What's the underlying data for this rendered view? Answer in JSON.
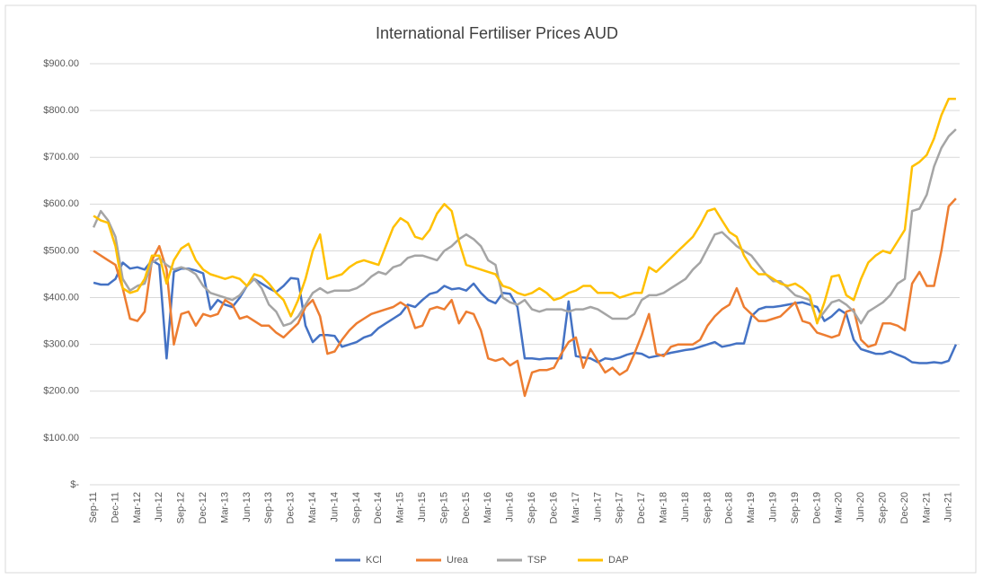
{
  "chart_data": {
    "type": "line",
    "title": "International Fertiliser Prices AUD",
    "categories": [
      "Sep-11",
      null,
      null,
      "Dec-11",
      null,
      null,
      "Mar-12",
      null,
      null,
      "Jun-12",
      null,
      null,
      "Sep-12",
      null,
      null,
      "Dec-12",
      null,
      null,
      "Mar-13",
      null,
      null,
      "Jun-13",
      null,
      null,
      "Sep-13",
      null,
      null,
      "Dec-13",
      null,
      null,
      "Mar-14",
      null,
      null,
      "Jun-14",
      null,
      null,
      "Sep-14",
      null,
      null,
      "Dec-14",
      null,
      null,
      "Mar-15",
      null,
      null,
      "Jun-15",
      null,
      null,
      "Sep-15",
      null,
      null,
      "Dec-15",
      null,
      null,
      "Mar-16",
      null,
      null,
      "Jun-16",
      null,
      null,
      "Sep-16",
      null,
      null,
      "Dec-16",
      null,
      null,
      "Mar-17",
      null,
      null,
      "Jun-17",
      null,
      null,
      "Sep-17",
      null,
      null,
      "Dec-17",
      null,
      null,
      "Mar-18",
      null,
      null,
      "Jun-18",
      null,
      null,
      "Sep-18",
      null,
      null,
      "Dec-18",
      null,
      null,
      "Mar-19",
      null,
      null,
      "Jun-19",
      null,
      null,
      "Sep-19",
      null,
      null,
      "Dec-19",
      null,
      null,
      "Mar-20",
      null,
      null,
      "Jun-20",
      null,
      null,
      "Sep-20",
      null,
      null,
      "Dec-20",
      null,
      null,
      "Mar-21",
      null,
      null,
      "Jun-21",
      null
    ],
    "series": [
      {
        "name": "KCl",
        "color": "#4472c4",
        "values": [
          432,
          428,
          428,
          440,
          475,
          462,
          465,
          460,
          480,
          470,
          270,
          455,
          462,
          462,
          458,
          452,
          375,
          395,
          385,
          380,
          400,
          425,
          440,
          430,
          420,
          412,
          425,
          442,
          440,
          340,
          305,
          320,
          320,
          318,
          295,
          300,
          305,
          315,
          320,
          335,
          345,
          355,
          365,
          385,
          380,
          395,
          408,
          412,
          425,
          418,
          420,
          415,
          430,
          410,
          395,
          388,
          410,
          408,
          380,
          270,
          270,
          268,
          270,
          270,
          270,
          392,
          275,
          272,
          270,
          262,
          270,
          268,
          272,
          278,
          282,
          280,
          272,
          275,
          278,
          282,
          285,
          288,
          290,
          295,
          300,
          305,
          295,
          298,
          302,
          302,
          360,
          375,
          380,
          380,
          382,
          385,
          388,
          390,
          385,
          380,
          350,
          360,
          375,
          365,
          310,
          290,
          285,
          280,
          280,
          285,
          278,
          272,
          262,
          260,
          260,
          262,
          260,
          265,
          300
        ]
      },
      {
        "name": "Urea",
        "color": "#ed7d31",
        "values": [
          500,
          490,
          480,
          470,
          420,
          355,
          350,
          370,
          480,
          510,
          460,
          300,
          365,
          370,
          340,
          365,
          360,
          365,
          395,
          385,
          355,
          360,
          350,
          340,
          340,
          325,
          315,
          330,
          345,
          380,
          395,
          360,
          280,
          285,
          310,
          330,
          345,
          355,
          365,
          370,
          375,
          380,
          390,
          380,
          335,
          340,
          375,
          380,
          375,
          395,
          345,
          370,
          365,
          330,
          270,
          265,
          270,
          255,
          265,
          190,
          240,
          245,
          245,
          250,
          280,
          305,
          315,
          250,
          290,
          265,
          240,
          250,
          235,
          245,
          280,
          320,
          365,
          280,
          275,
          295,
          300,
          300,
          300,
          310,
          340,
          360,
          375,
          385,
          420,
          380,
          365,
          350,
          350,
          355,
          360,
          375,
          390,
          350,
          345,
          325,
          320,
          315,
          320,
          370,
          375,
          310,
          295,
          300,
          345,
          345,
          340,
          330,
          430,
          455,
          425,
          425,
          500,
          595,
          612
        ]
      },
      {
        "name": "TSP",
        "color": "#a5a5a5",
        "values": [
          550,
          585,
          565,
          530,
          440,
          415,
          425,
          430,
          475,
          485,
          470,
          460,
          465,
          460,
          450,
          425,
          410,
          405,
          400,
          395,
          405,
          425,
          440,
          420,
          385,
          370,
          340,
          345,
          360,
          385,
          410,
          420,
          410,
          415,
          415,
          415,
          420,
          430,
          445,
          455,
          450,
          465,
          470,
          485,
          490,
          490,
          485,
          480,
          500,
          510,
          525,
          535,
          525,
          510,
          480,
          470,
          400,
          390,
          385,
          395,
          375,
          370,
          375,
          375,
          375,
          370,
          375,
          375,
          380,
          375,
          365,
          355,
          355,
          355,
          365,
          395,
          405,
          405,
          410,
          420,
          430,
          440,
          460,
          475,
          505,
          535,
          540,
          525,
          510,
          500,
          490,
          470,
          450,
          435,
          435,
          420,
          405,
          400,
          395,
          350,
          370,
          390,
          395,
          385,
          370,
          345,
          370,
          380,
          390,
          405,
          430,
          440,
          585,
          590,
          620,
          680,
          720,
          745,
          760
        ]
      },
      {
        "name": "DAP",
        "color": "#ffc000",
        "values": [
          575,
          565,
          560,
          510,
          420,
          410,
          415,
          440,
          490,
          490,
          430,
          480,
          505,
          515,
          480,
          460,
          450,
          445,
          440,
          445,
          440,
          425,
          450,
          445,
          430,
          410,
          395,
          360,
          395,
          440,
          500,
          535,
          440,
          445,
          450,
          465,
          475,
          480,
          475,
          470,
          510,
          550,
          570,
          560,
          530,
          525,
          545,
          580,
          600,
          585,
          520,
          470,
          465,
          460,
          455,
          450,
          425,
          420,
          410,
          405,
          410,
          420,
          410,
          395,
          400,
          410,
          415,
          425,
          425,
          410,
          410,
          410,
          400,
          405,
          410,
          410,
          465,
          455,
          470,
          485,
          500,
          515,
          530,
          555,
          585,
          590,
          565,
          540,
          530,
          490,
          465,
          450,
          450,
          440,
          430,
          425,
          430,
          420,
          405,
          345,
          390,
          445,
          448,
          405,
          395,
          440,
          475,
          490,
          500,
          495,
          520,
          545,
          680,
          690,
          705,
          740,
          790,
          825,
          825
        ]
      }
    ],
    "ylim": [
      0,
      900
    ],
    "yticks": [
      {
        "value": 0,
        "label": "$-"
      },
      {
        "value": 100,
        "label": "$100.00"
      },
      {
        "value": 200,
        "label": "$200.00"
      },
      {
        "value": 300,
        "label": "$300.00"
      },
      {
        "value": 400,
        "label": "$400.00"
      },
      {
        "value": 500,
        "label": "$500.00"
      },
      {
        "value": 600,
        "label": "$600.00"
      },
      {
        "value": 700,
        "label": "$700.00"
      },
      {
        "value": 800,
        "label": "$800.00"
      },
      {
        "value": 900,
        "label": "$900.00"
      }
    ],
    "grid": true,
    "legend": "bottom"
  }
}
